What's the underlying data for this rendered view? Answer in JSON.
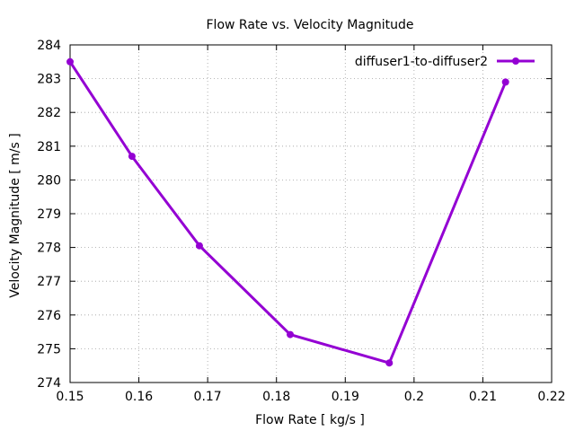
{
  "chart_data": {
    "type": "line",
    "title": "Flow Rate vs. Velocity Magnitude",
    "xlabel": "Flow Rate [ kg/s ]",
    "ylabel": "Velocity Magnitude [ m/s ]",
    "xlim": [
      0.15,
      0.22
    ],
    "ylim": [
      274,
      284
    ],
    "x_ticks": [
      "0.15",
      "0.16",
      "0.17",
      "0.18",
      "0.19",
      "0.2",
      "0.21",
      "0.22"
    ],
    "y_ticks": [
      "274",
      "275",
      "276",
      "277",
      "278",
      "279",
      "280",
      "281",
      "282",
      "283",
      "284"
    ],
    "grid": true,
    "legend_position": "top-right",
    "series": [
      {
        "name": "diffuser1-to-diffuser2",
        "color": "#9400d3",
        "marker": "circle",
        "x": [
          0.15,
          0.159,
          0.1688,
          0.182,
          0.1964,
          0.2133
        ],
        "y": [
          283.5,
          280.7,
          278.05,
          275.42,
          274.58,
          282.9
        ]
      }
    ]
  }
}
